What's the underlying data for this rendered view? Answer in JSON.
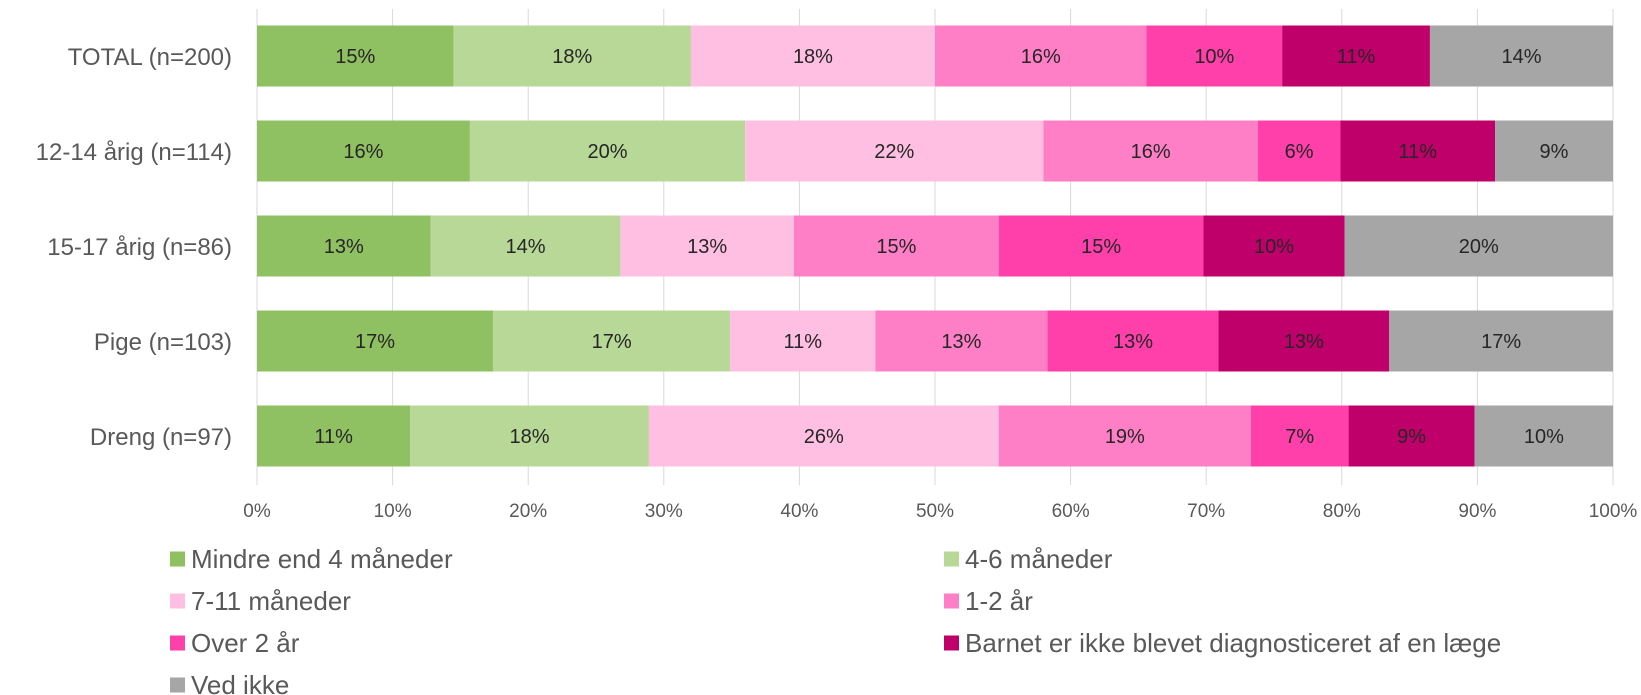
{
  "chart_data": {
    "type": "bar",
    "orientation": "horizontal",
    "stacked": "percent",
    "categories": [
      "TOTAL (n=200)",
      "12-14 årig (n=114)",
      "15-17 årig (n=86)",
      "Pige (n=103)",
      "Dreng (n=97)"
    ],
    "series": [
      {
        "name": "Mindre end 4 måneder",
        "color": "#8FC061",
        "values": [
          14.5,
          15.7,
          12.8,
          17.4,
          11.3
        ],
        "labels": [
          "15%",
          "16%",
          "13%",
          "17%",
          "11%"
        ]
      },
      {
        "name": "4-6 måneder",
        "color": "#B7D896",
        "values": [
          17.5,
          20.3,
          14.0,
          17.5,
          17.6
        ],
        "labels": [
          "18%",
          "20%",
          "14%",
          "17%",
          "18%"
        ]
      },
      {
        "name": "7-11 måneder",
        "color": "#FFBFE2",
        "values": [
          18.0,
          22.0,
          12.8,
          10.7,
          25.8
        ],
        "labels": [
          "18%",
          "22%",
          "13%",
          "11%",
          "26%"
        ]
      },
      {
        "name": "1-2 år",
        "color": "#FF7FC6",
        "values": [
          15.6,
          15.8,
          15.1,
          12.7,
          18.6
        ],
        "labels": [
          "16%",
          "16%",
          "15%",
          "13%",
          "19%"
        ]
      },
      {
        "name": "Over 2 år",
        "color": "#FF3FAA",
        "values": [
          10.0,
          6.1,
          15.1,
          12.6,
          7.2
        ],
        "labels": [
          "10%",
          "6%",
          "15%",
          "13%",
          "7%"
        ]
      },
      {
        "name": "Barnet er ikke blevet diagnosticeret af en læge",
        "color": "#C0006A",
        "values": [
          10.9,
          11.4,
          10.4,
          12.6,
          9.3
        ],
        "labels": [
          "11%",
          "11%",
          "10%",
          "13%",
          "9%"
        ]
      },
      {
        "name": "Ved ikke",
        "color": "#A6A6A6",
        "values": [
          13.5,
          8.7,
          19.8,
          16.5,
          10.2
        ],
        "labels": [
          "14%",
          "9%",
          "20%",
          "17%",
          "10%"
        ]
      }
    ],
    "xlim": [
      0,
      100
    ],
    "x_ticks": [
      "0%",
      "10%",
      "20%",
      "30%",
      "40%",
      "50%",
      "60%",
      "70%",
      "80%",
      "90%",
      "100%"
    ],
    "grid": true,
    "legend_position": "bottom"
  }
}
